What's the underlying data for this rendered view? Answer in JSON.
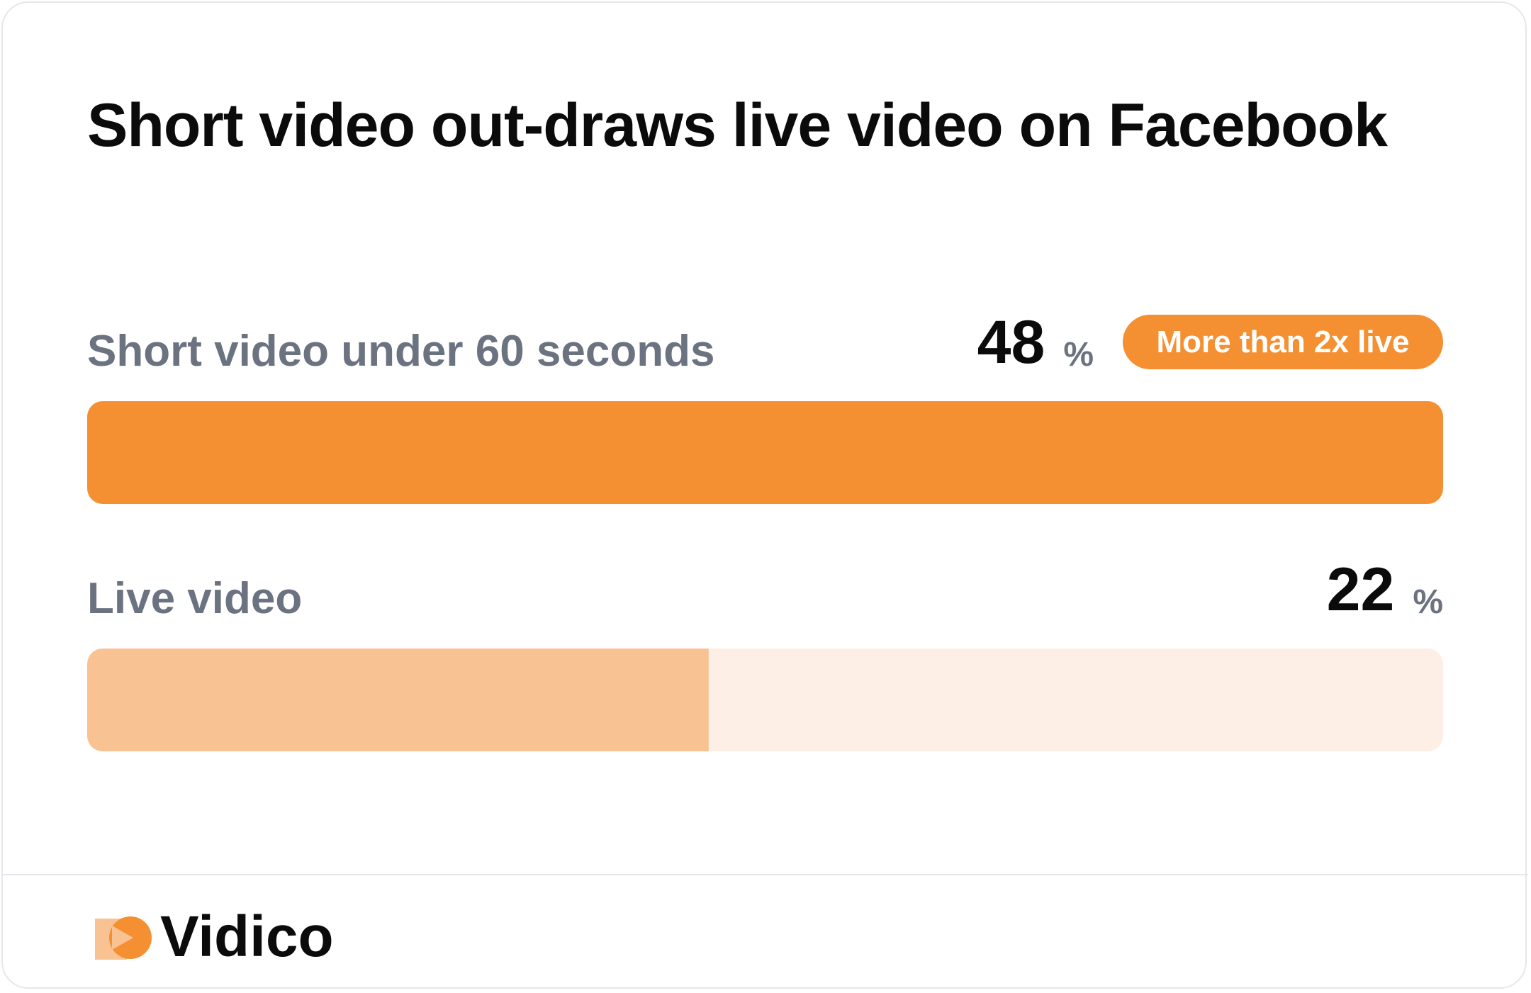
{
  "chart_data": {
    "type": "bar",
    "title": "Short video out-draws live video on Facebook",
    "categories": [
      "Short video under 60 seconds",
      "Live video"
    ],
    "values": [
      48,
      22
    ],
    "unit": "%",
    "colors": [
      "#f59032",
      "#f8c292"
    ],
    "annotation": "More than 2x live",
    "brand": "Vidico"
  }
}
